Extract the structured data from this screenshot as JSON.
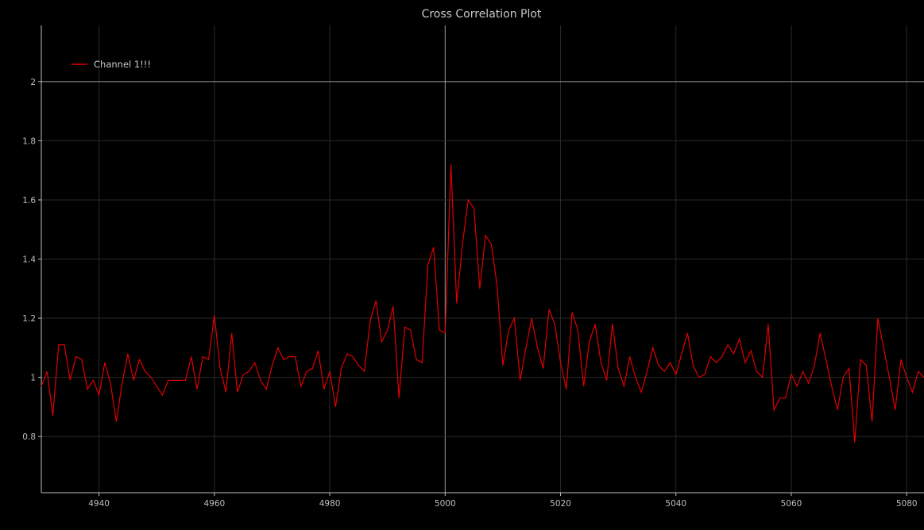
{
  "chart_data": {
    "type": "line",
    "title": "Cross Correlation Plot",
    "xlabel": "",
    "ylabel": "",
    "xlim": [
      4930,
      5083
    ],
    "ylim": [
      0.61,
      2.19
    ],
    "xticks": [
      4940,
      4960,
      4980,
      5000,
      5020,
      5040,
      5060,
      5080
    ],
    "xtick_labels": [
      "4940",
      "4960",
      "4980",
      "5000",
      "5020",
      "5040",
      "5060",
      "5080"
    ],
    "yticks": [
      0.8,
      1,
      1.2,
      1.4,
      1.6,
      1.8,
      2
    ],
    "ytick_labels": [
      "0.8",
      "1",
      "1.2",
      "1.4",
      "1.6",
      "1.8",
      "2"
    ],
    "highlight_x": 5000,
    "highlight_y": 2,
    "grid": true,
    "legend_position": "top-left",
    "background_color": "#000000",
    "grid_color": "#2a2a2a",
    "axis_color": "#bdbdbd",
    "series": [
      {
        "name": "Channel 1!!!",
        "color": "#e00000",
        "x": [
          4930,
          4931,
          4932,
          4933,
          4934,
          4935,
          4936,
          4937,
          4938,
          4939,
          4940,
          4941,
          4942,
          4943,
          4944,
          4945,
          4946,
          4947,
          4948,
          4949,
          4950,
          4951,
          4952,
          4953,
          4954,
          4955,
          4956,
          4957,
          4958,
          4959,
          4960,
          4961,
          4962,
          4963,
          4964,
          4965,
          4966,
          4967,
          4968,
          4969,
          4970,
          4971,
          4972,
          4973,
          4974,
          4975,
          4976,
          4977,
          4978,
          4979,
          4980,
          4981,
          4982,
          4983,
          4984,
          4985,
          4986,
          4987,
          4988,
          4989,
          4990,
          4991,
          4992,
          4993,
          4994,
          4995,
          4996,
          4997,
          4998,
          4999,
          5000,
          5001,
          5002,
          5003,
          5004,
          5005,
          5006,
          5007,
          5008,
          5009,
          5010,
          5011,
          5012,
          5013,
          5014,
          5015,
          5016,
          5017,
          5018,
          5019,
          5020,
          5021,
          5022,
          5023,
          5024,
          5025,
          5026,
          5027,
          5028,
          5029,
          5030,
          5031,
          5032,
          5033,
          5034,
          5035,
          5036,
          5037,
          5038,
          5039,
          5040,
          5041,
          5042,
          5043,
          5044,
          5045,
          5046,
          5047,
          5048,
          5049,
          5050,
          5051,
          5052,
          5053,
          5054,
          5055,
          5056,
          5057,
          5058,
          5059,
          5060,
          5061,
          5062,
          5063,
          5064,
          5065,
          5066,
          5067,
          5068,
          5069,
          5070,
          5071,
          5072,
          5073,
          5074,
          5075,
          5076,
          5077,
          5078,
          5079,
          5080,
          5081,
          5082,
          5083
        ],
        "y": [
          0.97,
          1.02,
          0.87,
          1.11,
          1.11,
          0.99,
          1.07,
          1.06,
          0.96,
          0.99,
          0.94,
          1.05,
          0.98,
          0.85,
          0.98,
          1.08,
          0.99,
          1.06,
          1.02,
          1.0,
          0.97,
          0.94,
          0.99,
          0.99,
          0.99,
          0.99,
          1.07,
          0.96,
          1.07,
          1.06,
          1.21,
          1.03,
          0.95,
          1.15,
          0.95,
          1.01,
          1.02,
          1.05,
          0.99,
          0.96,
          1.04,
          1.1,
          1.06,
          1.07,
          1.07,
          0.97,
          1.02,
          1.03,
          1.09,
          0.96,
          1.02,
          0.9,
          1.03,
          1.08,
          1.07,
          1.04,
          1.02,
          1.19,
          1.26,
          1.12,
          1.16,
          1.24,
          0.93,
          1.17,
          1.16,
          1.06,
          1.05,
          1.38,
          1.44,
          1.16,
          1.15,
          1.72,
          1.25,
          1.45,
          1.6,
          1.57,
          1.3,
          1.48,
          1.45,
          1.31,
          1.04,
          1.16,
          1.2,
          0.99,
          1.1,
          1.2,
          1.1,
          1.03,
          1.23,
          1.18,
          1.05,
          0.96,
          1.22,
          1.16,
          0.97,
          1.12,
          1.18,
          1.05,
          0.99,
          1.18,
          1.03,
          0.97,
          1.07,
          1.0,
          0.95,
          1.02,
          1.1,
          1.04,
          1.02,
          1.05,
          1.01,
          1.08,
          1.15,
          1.04,
          1.0,
          1.01,
          1.07,
          1.05,
          1.07,
          1.11,
          1.08,
          1.13,
          1.05,
          1.09,
          1.02,
          1.0,
          1.18,
          0.89,
          0.93,
          0.93,
          1.01,
          0.97,
          1.02,
          0.98,
          1.04,
          1.15,
          1.06,
          0.97,
          0.89,
          1.0,
          1.03,
          0.78,
          1.06,
          1.04,
          0.85,
          1.2,
          1.1,
          1.0,
          0.89,
          1.06,
          1.0,
          0.95,
          1.02,
          1.0
        ]
      }
    ]
  }
}
